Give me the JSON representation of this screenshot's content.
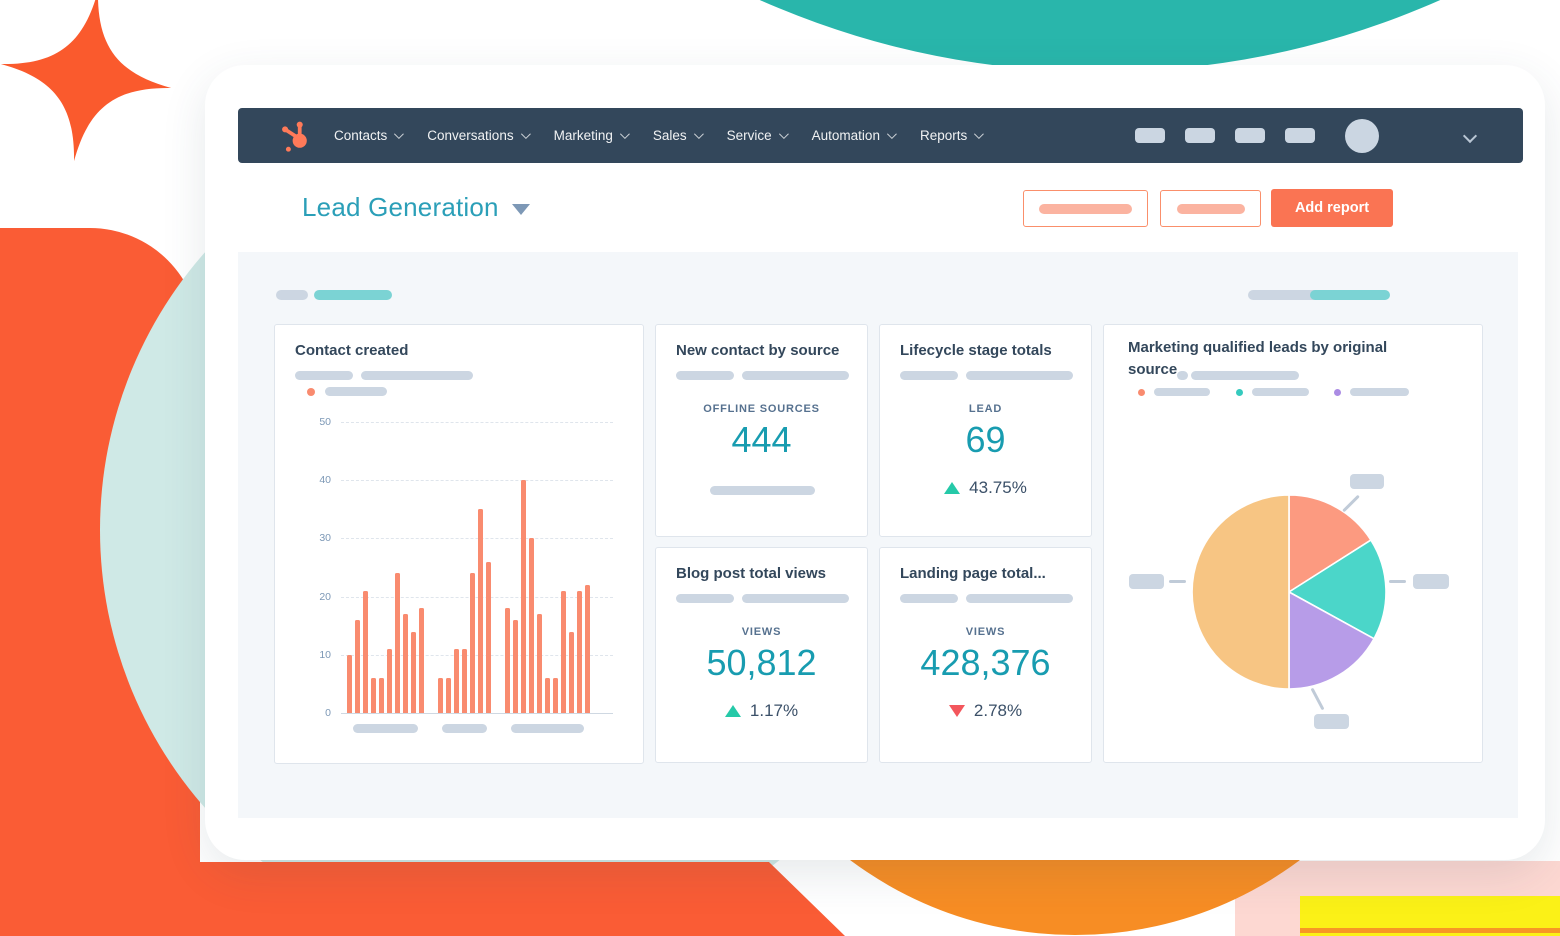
{
  "nav": {
    "items": [
      "Contacts",
      "Conversations",
      "Marketing",
      "Sales",
      "Service",
      "Automation",
      "Reports"
    ],
    "placeholder_pills": 4
  },
  "header": {
    "title": "Lead Generation",
    "add_report": "Add report"
  },
  "cards": {
    "contact_created": {
      "title": "Contact created"
    },
    "new_contact": {
      "title": "New contact by source",
      "label": "OFFLINE SOURCES",
      "value": "444"
    },
    "lifecycle": {
      "title": "Lifecycle stage totals",
      "label": "LEAD",
      "value": "69",
      "delta": "43.75%",
      "direction": "up"
    },
    "blog": {
      "title": "Blog post total views",
      "label": "VIEWS",
      "value": "50,812",
      "delta": "1.17%",
      "direction": "up"
    },
    "landing": {
      "title": "Landing page total...",
      "label": "VIEWS",
      "value": "428,376",
      "delta": "2.78%",
      "direction": "down"
    },
    "mql": {
      "title": "Marketing qualified leads by original source"
    }
  },
  "chart_data": [
    {
      "type": "bar",
      "title": "Contact created",
      "ylim": [
        0,
        50
      ],
      "yticks": [
        0,
        10,
        20,
        30,
        40,
        50
      ],
      "grid": "dashed-horizontal",
      "bar_color": "#f98b6f",
      "groups": [
        [
          10,
          16,
          21,
          6,
          6,
          11,
          24,
          17,
          14,
          18
        ],
        [
          6,
          6,
          11,
          11,
          24,
          35,
          26
        ],
        [
          18,
          16,
          40,
          30,
          17,
          6,
          6,
          21,
          14,
          21,
          22
        ]
      ],
      "x_labels": "placeholder-pills",
      "legend": "placeholder-pill-with-orange-dot"
    },
    {
      "type": "pie",
      "title": "Marketing qualified leads by original source",
      "start": "top",
      "direction": "clockwise",
      "slices": [
        {
          "name": "slice-1",
          "value": 16,
          "color": "#fc9a80"
        },
        {
          "name": "slice-2",
          "value": 17,
          "color": "#4bd6c9"
        },
        {
          "name": "slice-3",
          "value": 17,
          "color": "#b79ce8"
        },
        {
          "name": "slice-4",
          "value": 50,
          "color": "#f7c583"
        }
      ],
      "labels": "placeholder-callout-pills",
      "legend_dot_colors": [
        "#f98b6f",
        "#35cabe",
        "#ab8ce4"
      ]
    }
  ],
  "colors": {
    "navbar": "#33475b",
    "content_bg": "#f4f7fa",
    "title_teal": "#2b9fb8",
    "metric_teal": "#189cb0",
    "up_green": "#25c9a8",
    "down_red": "#f3565c",
    "button_salmon": "#fa7453",
    "pill_gray": "#ccd6e2",
    "pill_teal": "#7bd3d4",
    "sparkle_orange": "#fa5a2d",
    "blob_red": "#fa5c35",
    "circle_pale_cyan": "#cfe9e6",
    "circle_teal": "#29b6ab",
    "bowl_orange": "#f78d24",
    "pink": "#fdd8d2",
    "yellow": "#fbf117"
  }
}
